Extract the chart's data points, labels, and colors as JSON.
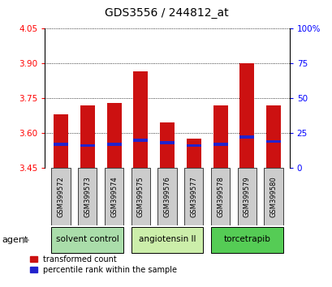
{
  "title": "GDS3556 / 244812_at",
  "samples": [
    "GSM399572",
    "GSM399573",
    "GSM399574",
    "GSM399575",
    "GSM399576",
    "GSM399577",
    "GSM399578",
    "GSM399579",
    "GSM399580"
  ],
  "transformed_counts": [
    3.68,
    3.72,
    3.73,
    3.865,
    3.645,
    3.575,
    3.72,
    3.9,
    3.72
  ],
  "percentile_ranks": [
    17,
    16,
    17,
    20,
    18,
    16,
    17,
    22,
    19
  ],
  "baseline": 3.45,
  "ylim_left": [
    3.45,
    4.05
  ],
  "ylim_right": [
    0,
    100
  ],
  "yticks_left": [
    3.45,
    3.6,
    3.75,
    3.9,
    4.05
  ],
  "yticks_right": [
    0,
    25,
    50,
    75,
    100
  ],
  "agents": [
    {
      "label": "solvent control",
      "samples": [
        0,
        1,
        2
      ],
      "color": "#aaddaa"
    },
    {
      "label": "angiotensin II",
      "samples": [
        3,
        4,
        5
      ],
      "color": "#cceeaa"
    },
    {
      "label": "torcetrapib",
      "samples": [
        6,
        7,
        8
      ],
      "color": "#55cc55"
    }
  ],
  "bar_color": "#cc1111",
  "blue_color": "#2222cc",
  "bar_width": 0.55,
  "legend_items": [
    "transformed count",
    "percentile rank within the sample"
  ],
  "background_color": "#ffffff",
  "sample_box_color": "#cccccc",
  "left_axis_color": "red",
  "right_axis_color": "blue"
}
